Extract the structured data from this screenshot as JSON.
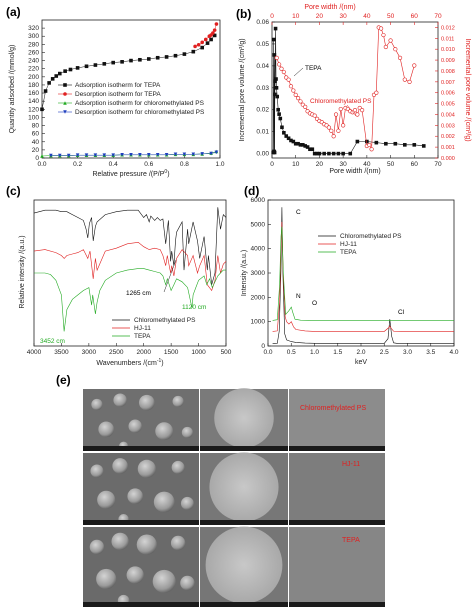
{
  "chart_data": [
    {
      "panel": "(a)",
      "type": "scatter",
      "xlabel": "Relative pressure /(P/P",
      "xlabel_sup": "0",
      "xlabel_end": ")",
      "ylabel": "Quantity adsorbed /(mmol/g)",
      "xlim": [
        0,
        1.0
      ],
      "ylim": [
        0,
        340
      ],
      "xticks": [
        "0.0",
        "0.2",
        "0.4",
        "0.6",
        "0.8",
        "1.0"
      ],
      "yticks": [
        "0",
        "20",
        "40",
        "60",
        "80",
        "100",
        "120",
        "140",
        "160",
        "180",
        "200",
        "220",
        "240",
        "260",
        "280",
        "300",
        "320"
      ],
      "series": [
        {
          "name": "Adsorption isotherm for TEPA",
          "color": "#111111",
          "marker": "square",
          "x": [
            0.0,
            0.02,
            0.04,
            0.06,
            0.08,
            0.1,
            0.13,
            0.16,
            0.2,
            0.25,
            0.3,
            0.35,
            0.4,
            0.45,
            0.5,
            0.55,
            0.6,
            0.65,
            0.7,
            0.75,
            0.8,
            0.85,
            0.9,
            0.93,
            0.95,
            0.97
          ],
          "y": [
            120,
            165,
            185,
            195,
            202,
            208,
            214,
            218,
            222,
            226,
            229,
            232,
            235,
            237,
            240,
            242,
            244,
            247,
            249,
            252,
            256,
            262,
            272,
            283,
            292,
            302
          ]
        },
        {
          "name": "Desorption isotherm for TEPA",
          "color": "#e02020",
          "marker": "circle",
          "x": [
            0.98,
            0.97,
            0.96,
            0.95,
            0.94,
            0.92,
            0.9,
            0.88,
            0.86
          ],
          "y": [
            330,
            315,
            308,
            303,
            300,
            292,
            285,
            279,
            275
          ]
        },
        {
          "name": "Adsorption isotherm for chloromethylated PS",
          "color": "#22aa22",
          "marker": "triangle-up",
          "x": [
            0.0,
            0.05,
            0.1,
            0.15,
            0.2,
            0.25,
            0.3,
            0.35,
            0.4,
            0.45,
            0.5,
            0.55,
            0.6,
            0.65,
            0.7,
            0.75,
            0.8,
            0.85,
            0.9,
            0.95,
            0.98
          ],
          "y": [
            5,
            6,
            6,
            6,
            7,
            7,
            7,
            7,
            7,
            8,
            8,
            8,
            8,
            8,
            8,
            9,
            9,
            9,
            10,
            12,
            16
          ]
        },
        {
          "name": "Desorption isotherm for chloromethylated PS",
          "color": "#1f3fbf",
          "marker": "triangle-down",
          "x": [
            0.98,
            0.95,
            0.9,
            0.85,
            0.8,
            0.75,
            0.7,
            0.65,
            0.6,
            0.55,
            0.5,
            0.45,
            0.4,
            0.35,
            0.3,
            0.25,
            0.2,
            0.15,
            0.1,
            0.05
          ],
          "y": [
            14,
            11,
            10,
            9,
            9,
            9,
            8,
            8,
            8,
            8,
            8,
            8,
            7,
            7,
            7,
            7,
            7,
            6,
            6,
            6
          ]
        }
      ]
    },
    {
      "panel": "(b)",
      "type": "line",
      "xlabel": "Pore width /(nm)",
      "x2label": "Pore width /(nm)",
      "ylabel": "Incremental pore volume /(cm³/g)",
      "y2label": "Incremental pore volume /(cm³/g)",
      "xlim": [
        0,
        70
      ],
      "x2lim": [
        0,
        70
      ],
      "ylim": [
        -0.002,
        0.06
      ],
      "y2lim": [
        0,
        0.0125
      ],
      "xticks": [
        "0",
        "10",
        "20",
        "30",
        "40",
        "50",
        "60",
        "70"
      ],
      "x2ticks": [
        "0",
        "10",
        "20",
        "30",
        "40",
        "50",
        "60",
        "70"
      ],
      "yticks": [
        "0.00",
        "0.01",
        "0.02",
        "0.03",
        "0.04",
        "0.05",
        "0.06"
      ],
      "y2ticks": [
        "0.000",
        "0.001",
        "0.002",
        "0.003",
        "0.004",
        "0.005",
        "0.006",
        "0.007",
        "0.008",
        "0.009",
        "0.010",
        "0.011",
        "0.012"
      ],
      "series": [
        {
          "name": "TEPA",
          "color": "#111111",
          "marker": "square",
          "axis": "left",
          "x": [
            0.5,
            0.7,
            0.9,
            1.0,
            1.1,
            1.2,
            1.3,
            1.5,
            1.7,
            1.9,
            2.2,
            2.6,
            3.0,
            3.5,
            4.2,
            5,
            6,
            7,
            8,
            9,
            10,
            11,
            12,
            13,
            14,
            15,
            16,
            17,
            18,
            19,
            20,
            22,
            24,
            26,
            28,
            30,
            33,
            36,
            40,
            44,
            48,
            52,
            56,
            60,
            64
          ],
          "y": [
            0.0005,
            0.052,
            0.001,
            0.045,
            0.0005,
            0.027,
            0.033,
            0.057,
            0.034,
            0.03,
            0.026,
            0.02,
            0.018,
            0.016,
            0.012,
            0.0095,
            0.008,
            0.007,
            0.006,
            0.0055,
            0.0045,
            0.0045,
            0.004,
            0.004,
            0.0035,
            0.003,
            0.002,
            0.002,
            0.0,
            0.0,
            0.0,
            0.0,
            0.0,
            0.0,
            0.0,
            0.0,
            0.0,
            0.0055,
            0.0055,
            0.005,
            0.0045,
            0.0045,
            0.004,
            0.004,
            0.0035
          ]
        },
        {
          "name": "Chloromethylated PS",
          "color": "#e02020",
          "marker": "circle-open",
          "axis": "right",
          "x": [
            2,
            3,
            4,
            5,
            6,
            7,
            8,
            9,
            10,
            11,
            12,
            13,
            14,
            15,
            16,
            17,
            18,
            19,
            20,
            21,
            22,
            23,
            24,
            25,
            26,
            27,
            28,
            29,
            30,
            31,
            32,
            33,
            34,
            35,
            36,
            37,
            38,
            40,
            41,
            42,
            43,
            44,
            45,
            46,
            47,
            48,
            50,
            52,
            54,
            56,
            58,
            60
          ],
          "y": [
            0.0092,
            0.0086,
            0.0082,
            0.0079,
            0.0074,
            0.0072,
            0.0066,
            0.0062,
            0.0058,
            0.0055,
            0.0052,
            0.0049,
            0.0047,
            0.0043,
            0.0041,
            0.004,
            0.0039,
            0.0036,
            0.0034,
            0.0033,
            0.0031,
            0.003,
            0.0028,
            0.0025,
            0.002,
            0.004,
            0.0025,
            0.0045,
            0.003,
            0.0046,
            0.0045,
            0.0043,
            0.0042,
            0.0044,
            0.004,
            0.0046,
            0.0044,
            0.0011,
            0.0012,
            0.0008,
            0.0058,
            0.006,
            0.012,
            0.0119,
            0.0113,
            0.0102,
            0.0108,
            0.01,
            0.0092,
            0.0072,
            0.007,
            0.0085
          ]
        }
      ],
      "annotations": [
        "TEPA",
        "Chloromethylated PS"
      ]
    },
    {
      "panel": "(c)",
      "type": "line",
      "xlabel": "Wavenumbers /(cm",
      "xlabel_sup": "-1",
      "xlabel_end": ")",
      "ylabel": "Relative intensity /(a.u.)",
      "xlim": [
        4000,
        500
      ],
      "xticks": [
        "4000",
        "3500",
        "3000",
        "2500",
        "2000",
        "1500",
        "1000",
        "500"
      ],
      "series": [
        {
          "name": "Chloromethylated PS",
          "color": "#111111",
          "x": [
            4000,
            3800,
            3600,
            3500,
            3400,
            3300,
            3200,
            3100,
            3050,
            3020,
            2990,
            2950,
            2920,
            2880,
            2850,
            2700,
            2500,
            2300,
            2100,
            2000,
            1950,
            1900,
            1870,
            1800,
            1750,
            1700,
            1650,
            1600,
            1550,
            1510,
            1490,
            1450,
            1420,
            1400,
            1300,
            1265,
            1200,
            1180,
            1100,
            1020,
            980,
            900,
            840,
            820,
            760,
            700,
            650,
            600,
            550,
            500
          ],
          "y": [
            0.91,
            0.93,
            0.93,
            0.92,
            0.92,
            0.9,
            0.88,
            0.86,
            0.8,
            0.74,
            0.84,
            0.88,
            0.72,
            0.82,
            0.85,
            0.9,
            0.92,
            0.93,
            0.93,
            0.88,
            0.9,
            0.85,
            0.89,
            0.86,
            0.88,
            0.86,
            0.87,
            0.7,
            0.86,
            0.58,
            0.65,
            0.55,
            0.72,
            0.78,
            0.85,
            0.52,
            0.8,
            0.7,
            0.85,
            0.72,
            0.6,
            0.75,
            0.52,
            0.62,
            0.42,
            0.5,
            0.95,
            0.8,
            0.9,
            0.88
          ]
        },
        {
          "name": "HJ-11",
          "color": "#e02020",
          "x": [
            4000,
            3800,
            3600,
            3500,
            3450,
            3400,
            3300,
            3200,
            3100,
            3020,
            2980,
            2920,
            2880,
            2850,
            2700,
            2500,
            2300,
            2100,
            2000,
            1900,
            1800,
            1700,
            1650,
            1600,
            1570,
            1510,
            1490,
            1450,
            1400,
            1300,
            1200,
            1180,
            1100,
            1020,
            980,
            900,
            840,
            760,
            700,
            650,
            600,
            550,
            500
          ],
          "y": [
            0.65,
            0.66,
            0.64,
            0.62,
            0.6,
            0.62,
            0.63,
            0.64,
            0.66,
            0.6,
            0.65,
            0.46,
            0.6,
            0.52,
            0.65,
            0.67,
            0.7,
            0.71,
            0.68,
            0.66,
            0.67,
            0.66,
            0.62,
            0.55,
            0.62,
            0.5,
            0.55,
            0.48,
            0.6,
            0.66,
            0.62,
            0.55,
            0.62,
            0.5,
            0.55,
            0.62,
            0.42,
            0.38,
            0.45,
            0.62,
            0.5,
            0.56,
            0.58
          ]
        },
        {
          "name": "TEPA",
          "color": "#22aa22",
          "x": [
            4000,
            3800,
            3700,
            3600,
            3500,
            3452,
            3400,
            3300,
            3200,
            3100,
            3000,
            2950,
            2930,
            2880,
            2850,
            2800,
            2700,
            2500,
            2300,
            2100,
            2000,
            1900,
            1800,
            1700,
            1650,
            1600,
            1570,
            1500,
            1450,
            1400,
            1300,
            1200,
            1120,
            1100,
            1050,
            1000,
            900,
            850,
            800,
            750,
            700,
            650,
            600,
            550,
            500
          ],
          "y": [
            0.5,
            0.5,
            0.49,
            0.45,
            0.35,
            0.1,
            0.25,
            0.32,
            0.35,
            0.38,
            0.4,
            0.28,
            0.35,
            0.22,
            0.3,
            0.38,
            0.45,
            0.5,
            0.52,
            0.53,
            0.53,
            0.52,
            0.51,
            0.5,
            0.48,
            0.42,
            0.46,
            0.38,
            0.42,
            0.46,
            0.44,
            0.4,
            0.26,
            0.35,
            0.4,
            0.45,
            0.48,
            0.42,
            0.46,
            0.4,
            0.44,
            0.48,
            0.5,
            0.52,
            0.52
          ]
        }
      ],
      "annotations": [
        "1265 cm",
        "1120 cm",
        "3452 cm"
      ]
    },
    {
      "panel": "(d)",
      "type": "line",
      "xlabel": "keV",
      "ylabel": "Intensity /(a.u.)",
      "xlim": [
        0,
        4.0
      ],
      "ylim": [
        0,
        6000
      ],
      "xticks": [
        "0.0",
        "0.5",
        "1.0",
        "1.5",
        "2.0",
        "2.5",
        "3.0",
        "3.5",
        "4.0"
      ],
      "yticks": [
        "0",
        "1000",
        "2000",
        "3000",
        "4000",
        "5000",
        "6000"
      ],
      "series": [
        {
          "name": "Chloromethylated PS",
          "color": "#111111",
          "x": [
            0.1,
            0.2,
            0.24,
            0.28,
            0.3,
            0.32,
            0.36,
            0.4,
            0.5,
            0.6,
            0.8,
            1.0,
            1.5,
            2.0,
            2.5,
            2.58,
            2.62,
            2.66,
            2.7,
            2.8,
            3.0,
            3.5,
            4.0
          ],
          "y": [
            100,
            110,
            600,
            3200,
            5700,
            3000,
            500,
            250,
            180,
            150,
            120,
            110,
            100,
            100,
            110,
            300,
            1100,
            400,
            130,
            100,
            100,
            100,
            100
          ]
        },
        {
          "name": "HJ-11",
          "color": "#e02020",
          "x": [
            0.1,
            0.2,
            0.25,
            0.28,
            0.3,
            0.33,
            0.37,
            0.4,
            0.45,
            0.5,
            0.55,
            0.6,
            0.8,
            1.0,
            1.5,
            2.0,
            2.5,
            2.6,
            2.62,
            2.66,
            2.7,
            3.0,
            3.5,
            4.0
          ],
          "y": [
            600,
            620,
            1800,
            4000,
            5100,
            2800,
            1200,
            1000,
            900,
            1000,
            780,
            680,
            620,
            600,
            600,
            600,
            600,
            760,
            820,
            700,
            610,
            600,
            600,
            600
          ]
        },
        {
          "name": "TEPA",
          "color": "#22aa22",
          "x": [
            0.1,
            0.2,
            0.25,
            0.28,
            0.3,
            0.33,
            0.38,
            0.45,
            0.5,
            0.53,
            0.58,
            0.7,
            1.0,
            1.5,
            2.0,
            2.5,
            3.0,
            3.5,
            4.0
          ],
          "y": [
            1050,
            1080,
            2500,
            4500,
            4900,
            3000,
            1300,
            1450,
            1600,
            1400,
            1100,
            1060,
            1050,
            1050,
            1050,
            1050,
            1050,
            1050,
            1050
          ]
        }
      ],
      "annotations": [
        "C",
        "N",
        "O",
        "Cl"
      ]
    }
  ],
  "micrographs": {
    "panel": "(e)",
    "row_labels": [
      "Chloromethylated PS",
      "HJ-11",
      "TEPA"
    ]
  },
  "panels": {
    "a": "(a)",
    "b": "(b)",
    "c": "(c)",
    "d": "(d)",
    "e": "(e)"
  }
}
